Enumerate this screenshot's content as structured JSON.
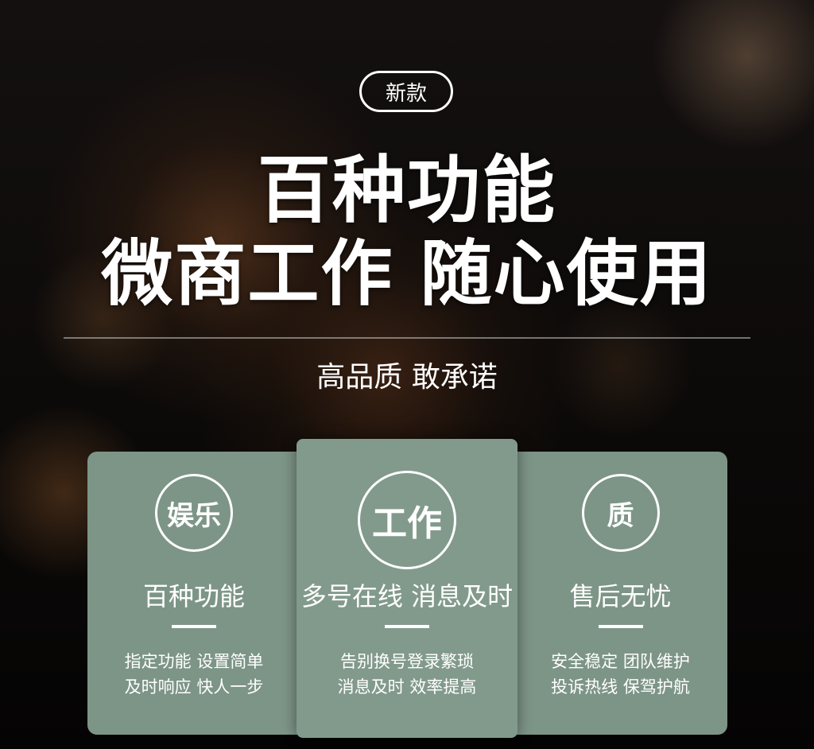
{
  "badge": "新款",
  "headline": {
    "line1": "百种功能",
    "line2": "微商工作 随心使用"
  },
  "tagline": "高品质 敢承诺",
  "cards": [
    {
      "circle_label": "娱乐",
      "title": "百种功能",
      "desc_line1": "指定功能 设置简单",
      "desc_line2": "及时响应 快人一步"
    },
    {
      "circle_label": "工作",
      "title": "多号在线 消息及时",
      "desc_line1": "告别换号登录繁琐",
      "desc_line2": "消息及时 效率提高"
    },
    {
      "circle_label": "质",
      "title": "售后无忧",
      "desc_line1": "安全稳定 团队维护",
      "desc_line2": "投诉热线 保驾护航"
    }
  ],
  "colors": {
    "card_green": "#7d9587",
    "text": "#ffffff",
    "background": "#0d0a08"
  }
}
